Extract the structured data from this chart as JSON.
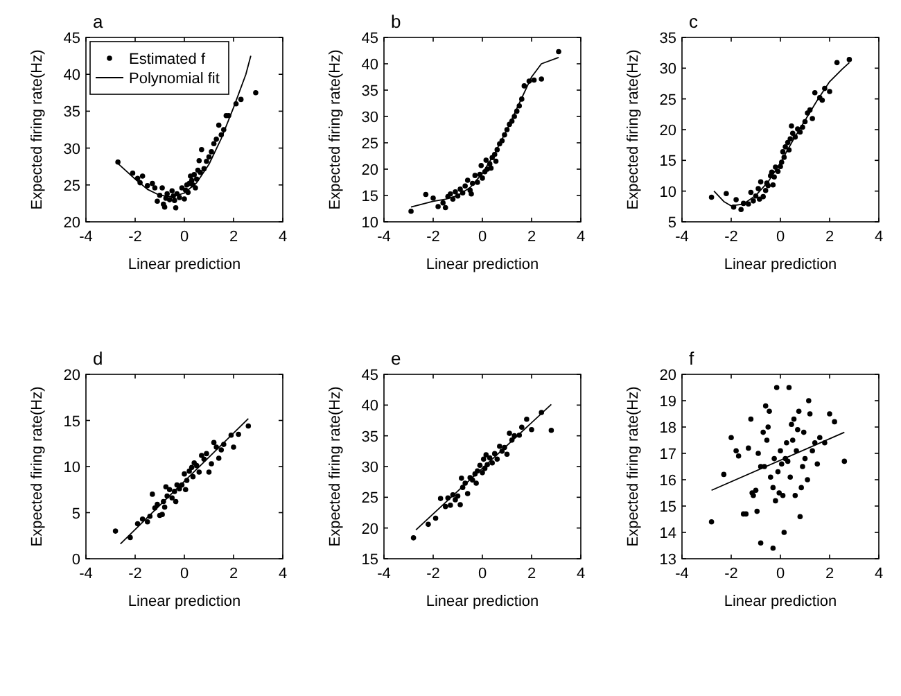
{
  "chart_data": [
    {
      "type": "scatter",
      "title": "a",
      "xlabel": "Linear prediction",
      "ylabel": "Expected firing rate(Hz)",
      "xlim": [
        -4,
        4
      ],
      "ylim": [
        20,
        45
      ],
      "xticks": [
        -4,
        -2,
        0,
        2,
        4
      ],
      "yticks": [
        20,
        25,
        30,
        35,
        40,
        45
      ],
      "legend": "top left",
      "grid": false,
      "series": [
        {
          "name": "Estimated f",
          "type": "scatter",
          "marker": "circle",
          "color": "#000000",
          "x": [
            -2.7,
            -2.1,
            -1.9,
            -1.7,
            -1.8,
            -1.5,
            -1.3,
            -1.2,
            -1.1,
            -1.0,
            -0.9,
            -0.85,
            -0.8,
            -0.75,
            -0.7,
            -0.6,
            -0.5,
            -0.45,
            -0.4,
            -0.35,
            -0.3,
            -0.2,
            -0.1,
            0,
            0.05,
            0.1,
            0.15,
            0.2,
            0.25,
            0.3,
            0.35,
            0.4,
            0.45,
            0.5,
            0.55,
            0.6,
            0.65,
            0.7,
            0.8,
            0.9,
            1.0,
            1.1,
            1.2,
            1.3,
            1.4,
            1.5,
            1.6,
            1.7,
            1.8,
            2.1,
            2.3,
            2.9
          ],
          "values": [
            28.1,
            26.6,
            25.9,
            26.2,
            25.3,
            24.9,
            25.2,
            24.6,
            22.8,
            23.6,
            24.6,
            22.4,
            22.0,
            23.2,
            23.8,
            23.0,
            24.2,
            23.5,
            22.9,
            21.9,
            23.8,
            23.3,
            24.6,
            23.1,
            24.3,
            25.0,
            24.0,
            25.2,
            26.2,
            25.6,
            25.0,
            26.4,
            24.6,
            25.8,
            27.0,
            28.3,
            26.7,
            29.8,
            27.2,
            28.2,
            28.8,
            29.5,
            30.6,
            31.2,
            33.1,
            31.8,
            32.5,
            34.4,
            34.4,
            36.0,
            36.6,
            37.5
          ]
        },
        {
          "name": "Polynomial fit",
          "type": "line",
          "marker": "none",
          "color": "#000000",
          "x": [
            -2.7,
            -2,
            -1.5,
            -1,
            -0.5,
            0,
            0.5,
            1,
            1.5,
            2,
            2.5,
            2.7
          ],
          "values": [
            27.9,
            25.8,
            24.4,
            23.6,
            23.4,
            23.9,
            25.3,
            27.8,
            31.3,
            35.5,
            40.0,
            42.5
          ]
        }
      ]
    },
    {
      "type": "scatter",
      "title": "b",
      "xlabel": "Linear prediction",
      "ylabel": "Expected firing rate(Hz)",
      "xlim": [
        -4,
        4
      ],
      "ylim": [
        10,
        45
      ],
      "xticks": [
        -4,
        -2,
        0,
        2,
        4
      ],
      "yticks": [
        10,
        15,
        20,
        25,
        30,
        35,
        40,
        45
      ],
      "grid": false,
      "series": [
        {
          "type": "scatter",
          "marker": "circle",
          "color": "#000000",
          "x": [
            -2.9,
            -2.3,
            -2.0,
            -1.8,
            -1.6,
            -1.5,
            -1.4,
            -1.3,
            -1.2,
            -1.1,
            -1.0,
            -0.9,
            -0.8,
            -0.7,
            -0.6,
            -0.5,
            -0.45,
            -0.4,
            -0.3,
            -0.2,
            -0.1,
            -0.05,
            0,
            0.1,
            0.15,
            0.2,
            0.3,
            0.35,
            0.4,
            0.5,
            0.55,
            0.6,
            0.7,
            0.8,
            0.9,
            1.0,
            1.1,
            1.2,
            1.3,
            1.4,
            1.5,
            1.6,
            1.7,
            1.9,
            2.1,
            2.4,
            3.1
          ],
          "values": [
            12.0,
            15.2,
            14.5,
            12.9,
            13.6,
            12.7,
            14.8,
            15.3,
            14.3,
            15.7,
            14.9,
            16.2,
            15.5,
            16.8,
            17.9,
            16.0,
            15.3,
            17.3,
            18.8,
            17.5,
            19.0,
            20.7,
            18.3,
            19.5,
            21.7,
            20.0,
            21.0,
            20.2,
            22.2,
            22.8,
            21.5,
            23.7,
            24.8,
            25.4,
            26.5,
            27.5,
            28.5,
            29.1,
            30.0,
            31.0,
            32.0,
            33.3,
            35.8,
            36.7,
            36.9,
            37.1,
            42.3
          ]
        },
        {
          "type": "line",
          "marker": "none",
          "color": "#000000",
          "x": [
            -2.9,
            -2,
            -1.5,
            -1,
            -0.5,
            0,
            0.5,
            1,
            1.5,
            2,
            2.4,
            3.1
          ],
          "values": [
            12.8,
            13.9,
            14.3,
            15.0,
            16.5,
            19.2,
            23.0,
            27.5,
            32.5,
            37.5,
            40.0,
            41.2
          ]
        }
      ]
    },
    {
      "type": "scatter",
      "title": "c",
      "xlabel": "Linear prediction",
      "ylabel": "Expected firing rate(Hz)",
      "xlim": [
        -4,
        4
      ],
      "ylim": [
        5,
        35
      ],
      "xticks": [
        -4,
        -2,
        0,
        2,
        4
      ],
      "yticks": [
        5,
        10,
        15,
        20,
        25,
        30,
        35
      ],
      "grid": false,
      "series": [
        {
          "type": "scatter",
          "marker": "circle",
          "color": "#000000",
          "x": [
            -2.8,
            -2.2,
            -1.9,
            -1.8,
            -1.6,
            -1.5,
            -1.3,
            -1.2,
            -1.1,
            -1.0,
            -0.9,
            -0.85,
            -0.8,
            -0.7,
            -0.6,
            -0.55,
            -0.5,
            -0.4,
            -0.35,
            -0.3,
            -0.25,
            -0.2,
            -0.1,
            0,
            0.05,
            0.1,
            0.15,
            0.2,
            0.3,
            0.35,
            0.4,
            0.45,
            0.5,
            0.6,
            0.7,
            0.8,
            0.9,
            1.0,
            1.1,
            1.2,
            1.3,
            1.4,
            1.6,
            1.7,
            1.8,
            2.0,
            2.3,
            2.8
          ],
          "values": [
            9.0,
            9.6,
            7.4,
            8.6,
            7.0,
            8.0,
            7.9,
            9.8,
            8.4,
            9.2,
            10.4,
            8.7,
            11.5,
            9.1,
            10.1,
            11.3,
            10.9,
            12.5,
            13.1,
            11.0,
            12.3,
            13.9,
            13.2,
            14.0,
            14.7,
            16.4,
            15.5,
            17.2,
            17.9,
            16.7,
            18.5,
            20.6,
            19.4,
            18.8,
            20.1,
            19.6,
            20.4,
            21.3,
            22.7,
            23.2,
            21.8,
            26.0,
            25.2,
            24.8,
            26.7,
            26.2,
            30.9,
            31.4
          ]
        },
        {
          "type": "line",
          "marker": "none",
          "color": "#000000",
          "x": [
            -2.7,
            -2.3,
            -2,
            -1.5,
            -1,
            -0.5,
            0,
            0.5,
            1,
            1.5,
            2,
            2.5,
            2.8
          ],
          "values": [
            10.0,
            8.3,
            7.6,
            7.9,
            9.3,
            11.5,
            14.6,
            18.2,
            21.5,
            24.8,
            27.8,
            29.8,
            30.9
          ]
        }
      ]
    },
    {
      "type": "scatter",
      "title": "d",
      "xlabel": "Linear prediction",
      "ylabel": "Expected firing rate(Hz)",
      "xlim": [
        -4,
        4
      ],
      "ylim": [
        0,
        20
      ],
      "xticks": [
        -4,
        -2,
        0,
        2,
        4
      ],
      "yticks": [
        0,
        5,
        10,
        15,
        20
      ],
      "grid": false,
      "series": [
        {
          "type": "scatter",
          "marker": "circle",
          "color": "#000000",
          "x": [
            -2.8,
            -2.2,
            -1.9,
            -1.7,
            -1.5,
            -1.4,
            -1.3,
            -1.2,
            -1.1,
            -1.0,
            -0.9,
            -0.85,
            -0.8,
            -0.75,
            -0.7,
            -0.6,
            -0.5,
            -0.4,
            -0.35,
            -0.3,
            -0.2,
            -0.1,
            0,
            0.05,
            0.1,
            0.2,
            0.3,
            0.35,
            0.4,
            0.5,
            0.6,
            0.7,
            0.8,
            0.9,
            1.0,
            1.1,
            1.2,
            1.3,
            1.4,
            1.5,
            1.6,
            1.9,
            2.0,
            2.2,
            2.6
          ],
          "values": [
            3.0,
            2.3,
            3.8,
            4.3,
            4.0,
            4.6,
            7.0,
            5.5,
            5.9,
            4.7,
            4.8,
            6.2,
            5.6,
            7.8,
            6.8,
            7.5,
            6.6,
            7.3,
            6.2,
            8.0,
            7.6,
            8.0,
            9.2,
            7.5,
            8.5,
            9.5,
            9.9,
            8.9,
            10.4,
            10.1,
            9.4,
            11.2,
            10.8,
            11.4,
            9.4,
            10.3,
            12.6,
            12.1,
            10.9,
            11.8,
            12.4,
            13.4,
            12.1,
            13.5,
            14.4
          ]
        },
        {
          "type": "line",
          "marker": "none",
          "color": "#000000",
          "x": [
            -2.6,
            2.6
          ],
          "values": [
            1.6,
            15.2
          ]
        }
      ]
    },
    {
      "type": "scatter",
      "title": "e",
      "xlabel": "Linear prediction",
      "ylabel": "Expected firing rate(Hz)",
      "xlim": [
        -4,
        4
      ],
      "ylim": [
        15,
        45
      ],
      "xticks": [
        -4,
        -2,
        0,
        2,
        4
      ],
      "yticks": [
        15,
        20,
        25,
        30,
        35,
        40,
        45
      ],
      "grid": false,
      "series": [
        {
          "type": "scatter",
          "marker": "circle",
          "color": "#000000",
          "x": [
            -2.8,
            -2.2,
            -1.9,
            -1.7,
            -1.5,
            -1.4,
            -1.3,
            -1.2,
            -1.1,
            -1.0,
            -0.9,
            -0.85,
            -0.8,
            -0.7,
            -0.6,
            -0.5,
            -0.4,
            -0.3,
            -0.25,
            -0.2,
            -0.1,
            0,
            0.05,
            0.1,
            0.15,
            0.2,
            0.3,
            0.4,
            0.5,
            0.6,
            0.7,
            0.8,
            0.9,
            1.0,
            1.1,
            1.2,
            1.3,
            1.5,
            1.6,
            1.8,
            2.0,
            2.4,
            2.8
          ],
          "values": [
            18.4,
            20.6,
            21.6,
            24.8,
            23.5,
            24.9,
            23.7,
            25.4,
            24.6,
            25.2,
            23.8,
            28.1,
            26.6,
            27.3,
            25.6,
            28.2,
            27.8,
            28.8,
            27.3,
            29.3,
            30.2,
            29.0,
            31.2,
            29.7,
            31.9,
            30.3,
            31.4,
            30.6,
            32.1,
            31.2,
            33.3,
            32.5,
            33.1,
            32.0,
            35.4,
            34.3,
            35.0,
            35.1,
            36.4,
            37.7,
            36.0,
            38.8,
            35.9
          ]
        },
        {
          "type": "line",
          "marker": "none",
          "color": "#000000",
          "x": [
            -2.7,
            2.8
          ],
          "values": [
            19.7,
            40.1
          ]
        }
      ]
    },
    {
      "type": "scatter",
      "title": "f",
      "xlabel": "Linear prediction",
      "ylabel": "Expected firing rate(Hz)",
      "xlim": [
        -4,
        4
      ],
      "ylim": [
        13,
        20
      ],
      "xticks": [
        -4,
        -2,
        0,
        2,
        4
      ],
      "yticks": [
        13,
        14,
        15,
        16,
        17,
        18,
        19,
        20
      ],
      "grid": false,
      "series": [
        {
          "type": "scatter",
          "marker": "circle",
          "color": "#000000",
          "x": [
            -2.8,
            -2.3,
            -2.0,
            -1.8,
            -1.7,
            -1.5,
            -1.4,
            -1.3,
            -1.2,
            -1.15,
            -1.1,
            -1.0,
            -0.95,
            -0.9,
            -0.8,
            -0.8,
            -0.7,
            -0.65,
            -0.6,
            -0.55,
            -0.5,
            -0.45,
            -0.4,
            -0.3,
            -0.25,
            -0.2,
            -0.15,
            -0.1,
            -0.05,
            0,
            0.05,
            0.1,
            0.15,
            0.2,
            0.25,
            0.3,
            0.35,
            0.4,
            0.45,
            0.5,
            0.55,
            0.6,
            0.65,
            0.7,
            0.75,
            0.8,
            0.85,
            0.9,
            0.95,
            1.0,
            1.1,
            1.15,
            1.2,
            1.3,
            1.4,
            1.5,
            1.6,
            1.8,
            2.0,
            2.2,
            2.6,
            -0.3
          ],
          "values": [
            14.4,
            16.2,
            17.6,
            17.1,
            16.9,
            14.7,
            14.7,
            17.2,
            18.3,
            15.5,
            15.4,
            15.6,
            14.8,
            17.0,
            16.5,
            13.6,
            17.8,
            16.5,
            18.8,
            17.5,
            18.0,
            18.6,
            16.1,
            15.7,
            16.8,
            15.2,
            19.5,
            16.3,
            15.5,
            17.1,
            16.6,
            15.4,
            14.0,
            16.8,
            17.4,
            16.7,
            19.5,
            16.1,
            18.1,
            17.5,
            18.3,
            15.4,
            17.1,
            17.9,
            18.6,
            14.6,
            15.7,
            16.5,
            17.8,
            16.8,
            16.0,
            19.0,
            18.5,
            17.1,
            17.4,
            16.6,
            17.6,
            17.4,
            18.5,
            18.2,
            16.7,
            13.4
          ]
        },
        {
          "type": "line",
          "marker": "none",
          "color": "#000000",
          "x": [
            -2.8,
            2.6
          ],
          "values": [
            15.6,
            17.8
          ]
        }
      ]
    }
  ]
}
